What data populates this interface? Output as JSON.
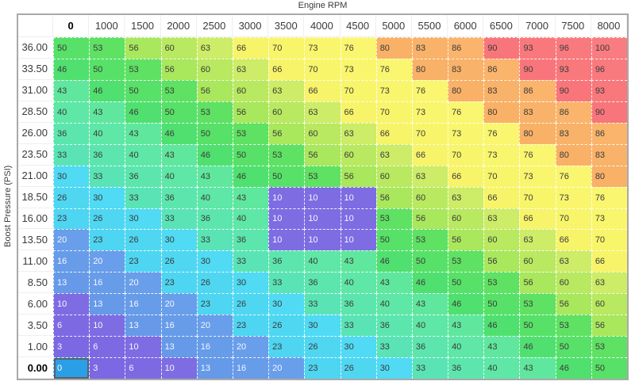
{
  "chart_data": {
    "type": "heatmap",
    "x_axis_title": "Engine RPM",
    "y_axis_title": "Boost Pressure (PSI)",
    "columns": [
      "0",
      "1000",
      "1500",
      "2000",
      "2500",
      "3000",
      "3500",
      "4000",
      "4500",
      "5000",
      "5500",
      "6000",
      "6500",
      "7000",
      "7500",
      "8000"
    ],
    "rows": [
      "36.00",
      "33.50",
      "31.00",
      "28.50",
      "26.00",
      "23.50",
      "21.00",
      "18.50",
      "16.00",
      "13.50",
      "11.00",
      "8.50",
      "6.00",
      "3.50",
      "1.00",
      "0.00"
    ],
    "values": [
      [
        50,
        53,
        56,
        60,
        63,
        66,
        70,
        73,
        76,
        80,
        83,
        86,
        90,
        93,
        96,
        100
      ],
      [
        46,
        50,
        53,
        56,
        60,
        63,
        66,
        70,
        73,
        76,
        80,
        83,
        86,
        90,
        93,
        96
      ],
      [
        43,
        46,
        50,
        53,
        56,
        60,
        63,
        66,
        70,
        73,
        76,
        80,
        83,
        86,
        90,
        93
      ],
      [
        40,
        43,
        46,
        50,
        53,
        56,
        60,
        63,
        66,
        70,
        73,
        76,
        80,
        83,
        86,
        90
      ],
      [
        36,
        40,
        43,
        46,
        50,
        53,
        56,
        60,
        63,
        66,
        70,
        73,
        76,
        80,
        83,
        86
      ],
      [
        33,
        36,
        40,
        43,
        46,
        50,
        53,
        56,
        60,
        63,
        66,
        70,
        73,
        76,
        80,
        83
      ],
      [
        30,
        33,
        36,
        40,
        43,
        46,
        50,
        53,
        56,
        60,
        63,
        66,
        70,
        73,
        76,
        80
      ],
      [
        26,
        30,
        33,
        36,
        40,
        43,
        10,
        10,
        10,
        56,
        60,
        63,
        66,
        70,
        73,
        76
      ],
      [
        23,
        26,
        30,
        33,
        36,
        40,
        10,
        10,
        10,
        53,
        56,
        60,
        63,
        66,
        70,
        73
      ],
      [
        20,
        23,
        26,
        30,
        33,
        36,
        10,
        10,
        10,
        50,
        53,
        56,
        60,
        63,
        66,
        70
      ],
      [
        16,
        20,
        23,
        26,
        30,
        33,
        36,
        40,
        43,
        46,
        50,
        53,
        56,
        60,
        63,
        66
      ],
      [
        13,
        16,
        20,
        23,
        26,
        30,
        33,
        36,
        40,
        43,
        46,
        50,
        53,
        56,
        60,
        63
      ],
      [
        10,
        13,
        16,
        20,
        23,
        26,
        30,
        33,
        36,
        40,
        43,
        46,
        50,
        53,
        56,
        60
      ],
      [
        6,
        10,
        13,
        16,
        20,
        23,
        26,
        30,
        33,
        36,
        40,
        43,
        46,
        50,
        53,
        56
      ],
      [
        3,
        6,
        10,
        13,
        16,
        20,
        23,
        26,
        30,
        33,
        36,
        40,
        43,
        46,
        50,
        53
      ],
      [
        0,
        3,
        6,
        10,
        13,
        16,
        20,
        23,
        26,
        30,
        33,
        36,
        40,
        43,
        46,
        50
      ]
    ],
    "selected_cell": {
      "row_label": "0.00",
      "column_label": "0",
      "value": 0
    },
    "styling": {
      "value_colors": {
        "0": "#2b9fe6",
        "3": "#7b68e2",
        "6": "#7d6ae2",
        "10": "#7e6ce3",
        "13": "#669ae8",
        "16": "#679ce9",
        "20": "#699eea",
        "23": "#4ed5f1",
        "26": "#4fd7f2",
        "30": "#50daf3",
        "33": "#5ae4b6",
        "36": "#5ce6ae",
        "40": "#5ee7a6",
        "43": "#60e79e",
        "46": "#50e070",
        "50": "#57e168",
        "53": "#5fe163",
        "56": "#a9e75d",
        "60": "#b9e960",
        "63": "#cdec67",
        "66": "#f7f469",
        "70": "#f8f56b",
        "73": "#f9f66d",
        "76": "#faf66f",
        "80": "#f9b167",
        "83": "#f9b269",
        "86": "#fab46c",
        "90": "#f8767b",
        "93": "#f8787c",
        "96": "#f97a7e",
        "100": "#f97c80"
      },
      "white_text_max_value": 20,
      "selected_background": "#2b9fe6",
      "selected_border": "#57616b",
      "grid_line_color": "#ffffff",
      "outer_border_color": "#a9a9a9",
      "dark_text_color": "#3c3c3c"
    }
  }
}
